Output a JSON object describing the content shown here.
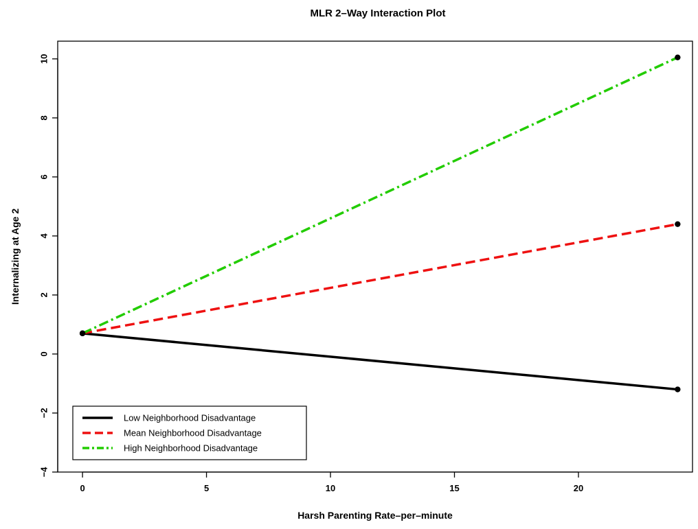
{
  "chart_data": {
    "type": "line",
    "title": "MLR 2–Way Interaction Plot",
    "xlabel": "Harsh Parenting Rate–per–minute",
    "ylabel": "Internalizing at Age 2",
    "xlim": [
      -1,
      24.6
    ],
    "ylim": [
      -4,
      10.6
    ],
    "x_ticks": [
      0,
      5,
      10,
      15,
      20
    ],
    "y_ticks": [
      -4,
      -2,
      0,
      2,
      4,
      6,
      8,
      10
    ],
    "x_tick_labels": [
      "0",
      "5",
      "10",
      "15",
      "20"
    ],
    "y_tick_labels": [
      "−4",
      "−2",
      "0",
      "2",
      "4",
      "6",
      "8",
      "10"
    ],
    "grid": false,
    "legend_position": "bottom-left",
    "series": [
      {
        "name": "Low Neighborhood Disadvantage",
        "x": [
          0,
          24
        ],
        "y": [
          0.7,
          -1.2
        ],
        "color": "#000000",
        "style": "solid"
      },
      {
        "name": "Mean Neighborhood Disadvantage",
        "x": [
          0,
          24
        ],
        "y": [
          0.7,
          4.4
        ],
        "color": "#ee1111",
        "style": "dashed"
      },
      {
        "name": "High Neighborhood Disadvantage",
        "x": [
          0,
          24
        ],
        "y": [
          0.7,
          10.05
        ],
        "color": "#22cc00",
        "style": "dashdot"
      }
    ]
  }
}
